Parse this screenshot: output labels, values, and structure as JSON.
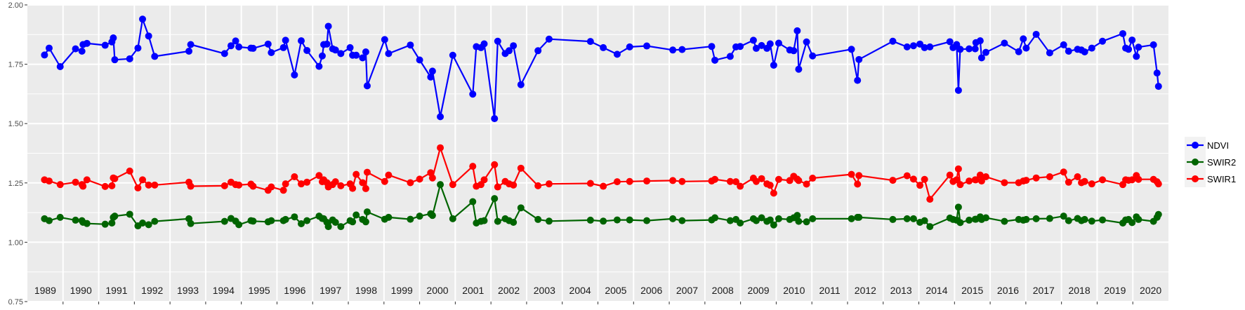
{
  "chart_data": {
    "type": "line",
    "title": "",
    "xlabel": "",
    "ylabel": "",
    "xlim": [
      1989.0,
      2021.0
    ],
    "ylim": [
      0.75,
      2.0
    ],
    "yticks": [
      "0.75",
      "1.00",
      "1.25",
      "1.50",
      "1.75",
      "2.00"
    ],
    "year_labels": [
      "1989",
      "1990",
      "1991",
      "1992",
      "1993",
      "1994",
      "1995",
      "1996",
      "1997",
      "1998",
      "1999",
      "2000",
      "2001",
      "2002",
      "2003",
      "2004",
      "2005",
      "2006",
      "2007",
      "2008",
      "2009",
      "2010",
      "2011",
      "2012",
      "2013",
      "2014",
      "2015",
      "2016",
      "2017",
      "2018",
      "2019",
      "2020"
    ],
    "grid": true,
    "legend_position": "right",
    "x": [
      1989.48,
      1989.61,
      1989.92,
      1990.35,
      1990.53,
      1990.56,
      1990.67,
      1991.18,
      1991.37,
      1991.41,
      1991.45,
      1991.87,
      1992.1,
      1992.23,
      1992.4,
      1992.57,
      1993.53,
      1993.58,
      1994.53,
      1994.71,
      1994.84,
      1994.93,
      1995.27,
      1995.33,
      1995.75,
      1995.84,
      1996.18,
      1996.24,
      1996.49,
      1996.68,
      1996.84,
      1997.18,
      1997.27,
      1997.31,
      1997.4,
      1997.44,
      1997.56,
      1997.64,
      1997.79,
      1998.05,
      1998.12,
      1998.22,
      1998.4,
      1998.49,
      1998.53,
      1999.02,
      1999.13,
      1999.74,
      2000.0,
      2000.31,
      2000.36,
      2000.58,
      2000.93,
      2001.49,
      2001.59,
      2001.72,
      2001.81,
      2002.1,
      2002.19,
      2002.4,
      2002.51,
      2002.63,
      2002.84,
      2003.32,
      2003.63,
      2004.79,
      2005.15,
      2005.54,
      2005.89,
      2006.37,
      2007.1,
      2007.36,
      2008.19,
      2008.28,
      2008.71,
      2008.87,
      2008.99,
      2009.36,
      2009.44,
      2009.59,
      2009.74,
      2009.83,
      2009.93,
      2010.07,
      2010.38,
      2010.49,
      2010.59,
      2010.63,
      2010.85,
      2011.02,
      2012.11,
      2012.28,
      2012.32,
      2013.27,
      2013.67,
      2013.85,
      2014.03,
      2014.16,
      2014.31,
      2014.87,
      2014.96,
      2015.06,
      2015.11,
      2015.16,
      2015.41,
      2015.58,
      2015.6,
      2015.72,
      2015.76,
      2015.88,
      2016.4,
      2016.8,
      2016.93,
      2017.01,
      2017.29,
      2017.67,
      2018.06,
      2018.2,
      2018.45,
      2018.56,
      2018.65,
      2018.85,
      2019.15,
      2019.72,
      2019.8,
      2019.88,
      2019.98,
      2020.1,
      2020.16,
      2020.58,
      2020.68,
      2020.72
    ],
    "series": [
      {
        "name": "NDVI",
        "color": "#0000ff",
        "values": [
          1.789,
          1.818,
          1.74,
          1.815,
          1.805,
          1.833,
          1.838,
          1.83,
          1.844,
          1.861,
          1.769,
          1.773,
          1.818,
          1.94,
          1.869,
          1.783,
          1.805,
          1.833,
          1.795,
          1.828,
          1.848,
          1.823,
          1.818,
          1.817,
          1.835,
          1.799,
          1.82,
          1.851,
          1.705,
          1.849,
          1.808,
          1.741,
          1.785,
          1.833,
          1.835,
          1.91,
          1.815,
          1.81,
          1.795,
          1.82,
          1.788,
          1.788,
          1.777,
          1.802,
          1.659,
          1.854,
          1.795,
          1.831,
          1.768,
          1.696,
          1.721,
          1.529,
          1.788,
          1.624,
          1.824,
          1.82,
          1.836,
          1.521,
          1.847,
          1.795,
          1.807,
          1.828,
          1.664,
          1.807,
          1.856,
          1.846,
          1.82,
          1.792,
          1.823,
          1.827,
          1.81,
          1.812,
          1.825,
          1.767,
          1.783,
          1.823,
          1.825,
          1.851,
          1.817,
          1.829,
          1.817,
          1.836,
          1.746,
          1.839,
          1.81,
          1.807,
          1.891,
          1.729,
          1.844,
          1.785,
          1.813,
          1.682,
          1.77,
          1.847,
          1.823,
          1.828,
          1.835,
          1.82,
          1.823,
          1.845,
          1.82,
          1.833,
          1.64,
          1.813,
          1.815,
          1.815,
          1.841,
          1.849,
          1.777,
          1.8,
          1.839,
          1.803,
          1.857,
          1.818,
          1.876,
          1.798,
          1.832,
          1.805,
          1.813,
          1.81,
          1.802,
          1.818,
          1.847,
          1.879,
          1.818,
          1.813,
          1.852,
          1.783,
          1.822,
          1.832,
          1.713,
          1.657
        ]
      },
      {
        "name": "SWIR2",
        "color": "#006400",
        "values": [
          1.099,
          1.091,
          1.105,
          1.093,
          1.091,
          1.084,
          1.079,
          1.076,
          1.081,
          1.105,
          1.11,
          1.118,
          1.069,
          1.081,
          1.074,
          1.088,
          1.099,
          1.079,
          1.088,
          1.1,
          1.089,
          1.074,
          1.091,
          1.089,
          1.086,
          1.091,
          1.091,
          1.096,
          1.107,
          1.078,
          1.091,
          1.11,
          1.1,
          1.099,
          1.084,
          1.066,
          1.094,
          1.084,
          1.066,
          1.091,
          1.086,
          1.115,
          1.096,
          1.086,
          1.128,
          1.097,
          1.105,
          1.097,
          1.11,
          1.12,
          1.113,
          1.243,
          1.099,
          1.171,
          1.081,
          1.088,
          1.091,
          1.184,
          1.088,
          1.099,
          1.091,
          1.084,
          1.145,
          1.096,
          1.089,
          1.093,
          1.089,
          1.094,
          1.094,
          1.091,
          1.099,
          1.091,
          1.094,
          1.103,
          1.091,
          1.096,
          1.081,
          1.099,
          1.091,
          1.103,
          1.088,
          1.094,
          1.073,
          1.099,
          1.096,
          1.103,
          1.113,
          1.088,
          1.086,
          1.099,
          1.099,
          1.105,
          1.105,
          1.096,
          1.099,
          1.099,
          1.084,
          1.091,
          1.066,
          1.102,
          1.096,
          1.093,
          1.148,
          1.083,
          1.093,
          1.097,
          1.097,
          1.107,
          1.096,
          1.103,
          1.088,
          1.096,
          1.093,
          1.096,
          1.099,
          1.1,
          1.11,
          1.091,
          1.1,
          1.091,
          1.096,
          1.089,
          1.094,
          1.081,
          1.094,
          1.096,
          1.083,
          1.107,
          1.096,
          1.088,
          1.105,
          1.117
        ]
      },
      {
        "name": "SWIR1",
        "color": "#ff0000",
        "values": [
          1.263,
          1.258,
          1.243,
          1.253,
          1.243,
          1.236,
          1.263,
          1.235,
          1.238,
          1.271,
          1.268,
          1.3,
          1.229,
          1.263,
          1.241,
          1.241,
          1.253,
          1.236,
          1.238,
          1.253,
          1.243,
          1.241,
          1.245,
          1.236,
          1.219,
          1.233,
          1.219,
          1.246,
          1.276,
          1.246,
          1.253,
          1.281,
          1.255,
          1.263,
          1.251,
          1.233,
          1.243,
          1.255,
          1.238,
          1.246,
          1.227,
          1.286,
          1.251,
          1.226,
          1.295,
          1.256,
          1.283,
          1.251,
          1.266,
          1.293,
          1.271,
          1.398,
          1.243,
          1.32,
          1.236,
          1.243,
          1.263,
          1.327,
          1.233,
          1.256,
          1.246,
          1.241,
          1.312,
          1.238,
          1.246,
          1.248,
          1.236,
          1.255,
          1.256,
          1.258,
          1.26,
          1.256,
          1.258,
          1.265,
          1.256,
          1.255,
          1.236,
          1.27,
          1.256,
          1.268,
          1.246,
          1.24,
          1.207,
          1.265,
          1.26,
          1.278,
          1.266,
          1.26,
          1.245,
          1.27,
          1.286,
          1.245,
          1.281,
          1.261,
          1.28,
          1.266,
          1.24,
          1.265,
          1.181,
          1.283,
          1.256,
          1.263,
          1.309,
          1.243,
          1.258,
          1.263,
          1.263,
          1.283,
          1.258,
          1.276,
          1.251,
          1.251,
          1.258,
          1.261,
          1.271,
          1.276,
          1.296,
          1.253,
          1.276,
          1.251,
          1.256,
          1.246,
          1.263,
          1.243,
          1.263,
          1.261,
          1.263,
          1.281,
          1.265,
          1.265,
          1.255,
          1.246
        ]
      }
    ],
    "legend_order": [
      "NDVI",
      "SWIR2",
      "SWIR1"
    ]
  }
}
